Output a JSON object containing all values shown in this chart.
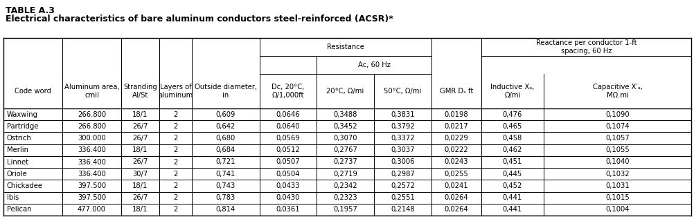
{
  "title_line1": "TABLE A.3",
  "title_line2": "Electrical characteristics of bare aluminum conductors steel-reinforced (ACSR)*",
  "resistance_label": "Resistance",
  "ac_label": "Ac, 60 Hz",
  "reactance_label": "Reactance per conductor 1-ft\nspacing, 60 Hz",
  "col_labels_top": [
    "Code word",
    "Aluminum area,\ncmil",
    "Stranding\nAl/St",
    "Layers of\naluminum",
    "Outside diameter,\nin",
    "Dc, 20°C,\nΩ/1,000ft",
    "20°C, Ω/mi",
    "50°C, Ω/mi",
    "GMR Dₛ ft",
    "Inductive Xₐ,\nΩ/mi",
    "Capacitive X′ₐ,\nMΩ.mi"
  ],
  "rows": [
    [
      "Waxwing",
      "266.800",
      "18/1",
      "2",
      "0,609",
      "0,0646",
      "0,3488",
      "0,3831",
      "0,0198",
      "0,476",
      "0,1090"
    ],
    [
      "Partridge",
      "266.800",
      "26/7",
      "2",
      "0,642",
      "0,0640",
      "0,3452",
      "0,3792",
      "0,0217",
      "0,465",
      "0,1074"
    ],
    [
      "Ostrich",
      "300.000",
      "26/7",
      "2",
      "0,680",
      "0,0569",
      "0,3070",
      "0,3372",
      "0,0229",
      "0,458",
      "0,1057"
    ],
    [
      "Merlin",
      "336.400",
      "18/1",
      "2",
      "0,684",
      "0,0512",
      "0,2767",
      "0,3037",
      "0,0222",
      "0,462",
      "0,1055"
    ],
    [
      "Linnet",
      "336.400",
      "26/7",
      "2",
      "0,721",
      "0,0507",
      "0,2737",
      "0,3006",
      "0,0243",
      "0,451",
      "0,1040"
    ],
    [
      "Oriole",
      "336.400",
      "30/7",
      "2",
      "0,741",
      "0,0504",
      "0,2719",
      "0,2987",
      "0,0255",
      "0,445",
      "0,1032"
    ],
    [
      "Chickadee",
      "397.500",
      "18/1",
      "2",
      "0,743",
      "0,0433",
      "0,2342",
      "0,2572",
      "0,0241",
      "0,452",
      "0,1031"
    ],
    [
      "Ibis",
      "397.500",
      "26/7",
      "2",
      "0,783",
      "0,0430",
      "0,2323",
      "0,2551",
      "0,0264",
      "0,441",
      "0,1015"
    ],
    [
      "Pelican",
      "477.000",
      "18/1",
      "2",
      "0,814",
      "0,0361",
      "0,1957",
      "0,2148",
      "0,0264",
      "0,441",
      "0,1004"
    ]
  ],
  "bg_color": "#ffffff",
  "text_color": "#000000",
  "font_size": 7.2,
  "title_font_size": 9.0
}
